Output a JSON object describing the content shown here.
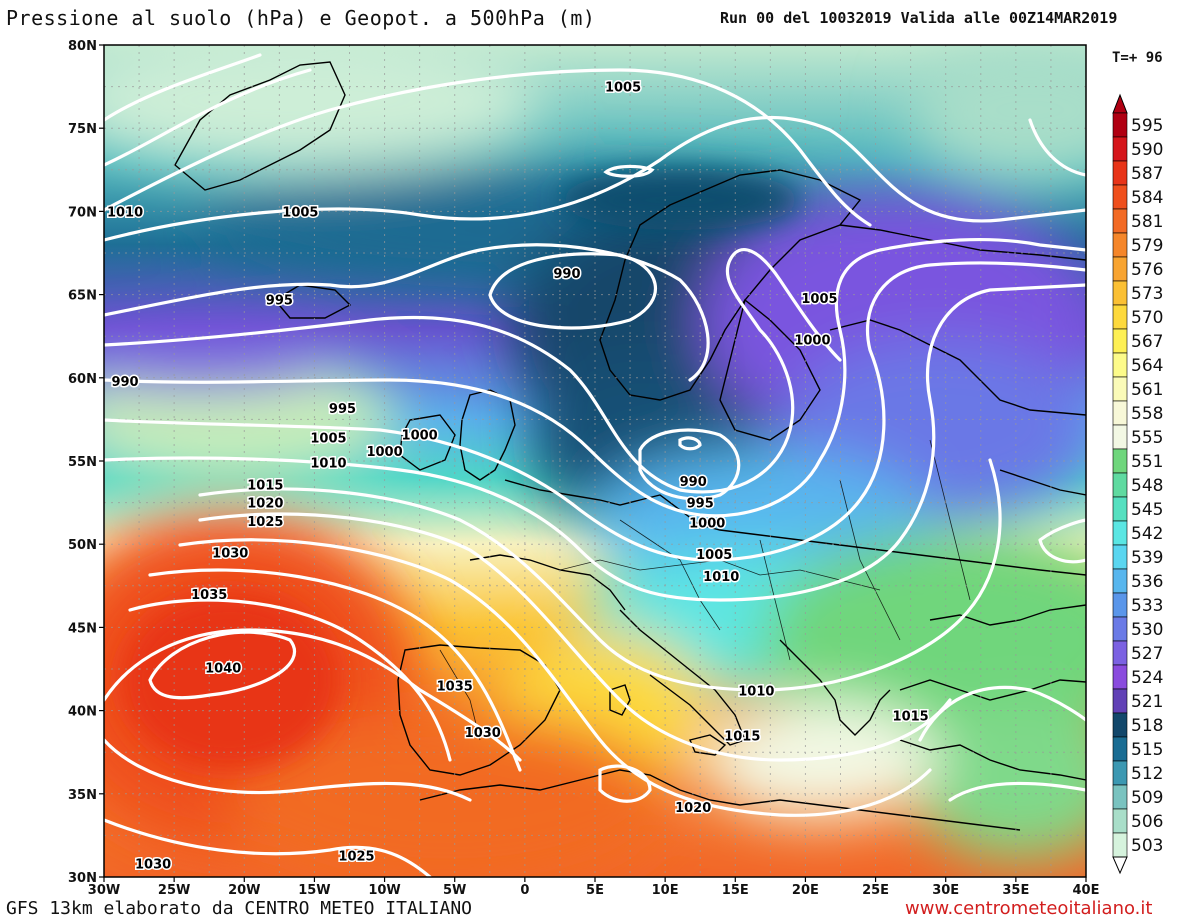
{
  "header": {
    "title": "Pressione al suolo (hPa) e Geopot. a 500hPa (m)",
    "run_info": "Run 00 del 10032019 Valida alle 00Z14MAR2019",
    "time_step": "T=+ 96"
  },
  "footer": {
    "model_credit": "GFS 13km elaborato da CENTRO METEO ITALIANO",
    "website": "www.centrometeoitaliano.it"
  },
  "map": {
    "lat_ticks": [
      "80N",
      "75N",
      "70N",
      "65N",
      "60N",
      "55N",
      "50N",
      "45N",
      "40N",
      "35N",
      "30N"
    ],
    "lon_ticks": [
      "30W",
      "25W",
      "20W",
      "15W",
      "10W",
      "5W",
      "0",
      "5E",
      "10E",
      "15E",
      "20E",
      "25E",
      "30E",
      "35E",
      "40E"
    ],
    "isobar_labels": [
      {
        "text": "1005",
        "lon": 7,
        "lat": 77.5
      },
      {
        "text": "1010",
        "lon": -28.5,
        "lat": 70
      },
      {
        "text": "1005",
        "lon": -16,
        "lat": 70
      },
      {
        "text": "990",
        "lon": 3,
        "lat": 66.3
      },
      {
        "text": "995",
        "lon": -17.5,
        "lat": 64.7
      },
      {
        "text": "1005",
        "lon": 21,
        "lat": 64.8
      },
      {
        "text": "1000",
        "lon": 20.5,
        "lat": 62.3
      },
      {
        "text": "990",
        "lon": -28.5,
        "lat": 59.8
      },
      {
        "text": "995",
        "lon": -13,
        "lat": 58.2
      },
      {
        "text": "1000",
        "lon": -10,
        "lat": 55.6
      },
      {
        "text": "1000",
        "lon": -7.5,
        "lat": 56.6
      },
      {
        "text": "1005",
        "lon": -14,
        "lat": 56.4
      },
      {
        "text": "1010",
        "lon": -14,
        "lat": 54.9
      },
      {
        "text": "1015",
        "lon": -18.5,
        "lat": 53.6
      },
      {
        "text": "1020",
        "lon": -18.5,
        "lat": 52.5
      },
      {
        "text": "1025",
        "lon": -18.5,
        "lat": 51.4
      },
      {
        "text": "1030",
        "lon": -21,
        "lat": 49.5
      },
      {
        "text": "1035",
        "lon": -22.5,
        "lat": 47
      },
      {
        "text": "1040",
        "lon": -21.5,
        "lat": 42.6
      },
      {
        "text": "1035",
        "lon": -5,
        "lat": 41.5
      },
      {
        "text": "1030",
        "lon": -3,
        "lat": 38.7
      },
      {
        "text": "1025",
        "lon": -12,
        "lat": 31.3
      },
      {
        "text": "1030",
        "lon": -26.5,
        "lat": 30.8
      },
      {
        "text": "990",
        "lon": 12,
        "lat": 53.8
      },
      {
        "text": "995",
        "lon": 12.5,
        "lat": 52.5
      },
      {
        "text": "1000",
        "lon": 13,
        "lat": 51.3
      },
      {
        "text": "1005",
        "lon": 13.5,
        "lat": 49.4
      },
      {
        "text": "1010",
        "lon": 14,
        "lat": 48.1
      },
      {
        "text": "1010",
        "lon": 16.5,
        "lat": 41.2
      },
      {
        "text": "1015",
        "lon": 15.5,
        "lat": 38.5
      },
      {
        "text": "1020",
        "lon": 12,
        "lat": 34.2
      },
      {
        "text": "1015",
        "lon": 27.5,
        "lat": 39.7
      }
    ]
  },
  "colorbar": {
    "labels": [
      "595",
      "590",
      "587",
      "584",
      "581",
      "579",
      "576",
      "573",
      "570",
      "567",
      "564",
      "561",
      "558",
      "555",
      "551",
      "548",
      "545",
      "542",
      "539",
      "536",
      "533",
      "530",
      "527",
      "524",
      "521",
      "518",
      "515",
      "512",
      "509",
      "506",
      "503"
    ],
    "colors": [
      "#b00012",
      "#d5161b",
      "#e83418",
      "#ef4f1c",
      "#f26a24",
      "#f5862a",
      "#f8a431",
      "#fbc034",
      "#fdd93c",
      "#fef054",
      "#fdfb8a",
      "#fbfbb8",
      "#f8f8d8",
      "#f3f8e4",
      "#6fd67c",
      "#5fdaa0",
      "#55e0c0",
      "#5be6e3",
      "#5ad6f0",
      "#58b6ee",
      "#5a96ea",
      "#6a7ae6",
      "#7b61e2",
      "#8a4bde",
      "#6141b6",
      "#12476b",
      "#1a6c93",
      "#3c98b2",
      "#7ac3c0",
      "#a9dec9",
      "#d6f3dd"
    ],
    "colors_note": ""
  },
  "palette": {
    "sea_deep_blue": "#0f4d6e",
    "violet": "#7b61e2",
    "green": "#6fd67c",
    "pale_green": "#d6f3dd",
    "orange_red": "#ef4f1c",
    "isobar_color": "#ffffff",
    "coast_color": "#000000"
  }
}
